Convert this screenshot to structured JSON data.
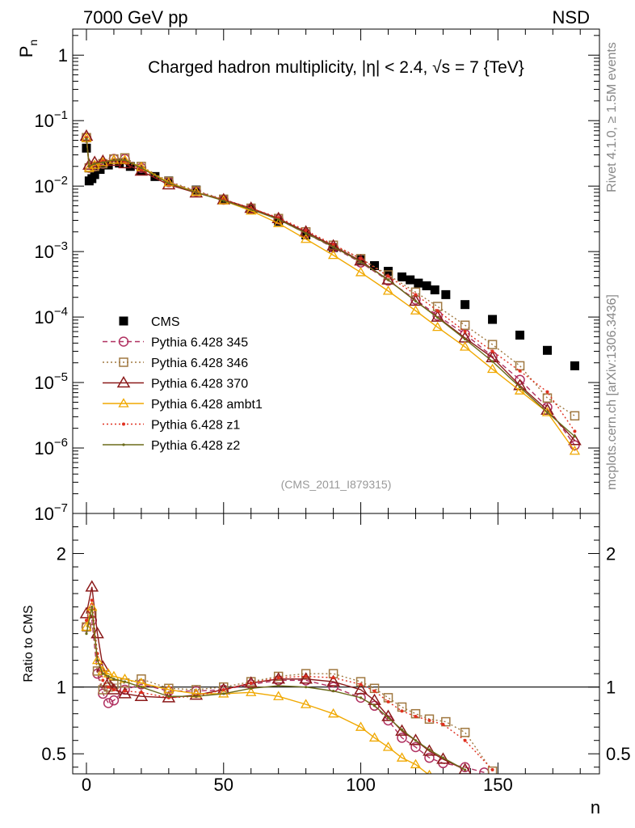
{
  "header": {
    "energy_label": "7000 GeV pp",
    "process_label": "NSD",
    "plot_title": "Charged hadron multiplicity, |η| < 2.4, √s = 7 {TeV}",
    "analysis_id": "(CMS_2011_I879315)",
    "rivet_label": "Rivet 4.1.0, ≥ 1.5M events",
    "mcplots_label": "mcplots.cern.ch [arXiv:1306.3436]"
  },
  "chart_data": [
    {
      "type": "scatter",
      "panel": "main",
      "title": "Charged hadron multiplicity, |η| < 2.4, √s = 7 {TeV}",
      "xlabel": "n",
      "ylabel": "P_n",
      "yscale": "log",
      "xlim": [
        -5,
        187
      ],
      "ylim": [
        1e-07,
        2.5
      ],
      "y_tick_labels": [
        "10^-7",
        "10^-6",
        "10^-5",
        "10^-4",
        "10^-3",
        "10^-2",
        "10^-1",
        "1"
      ],
      "legend_position": "lower-left",
      "series": [
        {
          "name": "CMS",
          "color": "#000000",
          "marker": "filled-square",
          "x": [
            0,
            1,
            2,
            3,
            5,
            8,
            12,
            16,
            20,
            25,
            30,
            40,
            50,
            60,
            70,
            80,
            90,
            100,
            105,
            110,
            115,
            118,
            121,
            124,
            127,
            131,
            138,
            148,
            158,
            168,
            178
          ],
          "values": [
            0.038,
            0.012,
            0.013,
            0.015,
            0.018,
            0.021,
            0.0225,
            0.02,
            0.017,
            0.014,
            0.012,
            0.0087,
            0.0063,
            0.0044,
            0.0029,
            0.0018,
            0.00115,
            0.00075,
            0.00061,
            0.0005,
            0.00041,
            0.00037,
            0.00033,
            0.0003,
            0.00026,
            0.00022,
            0.000155,
            9.2e-05,
            5.3e-05,
            3.1e-05,
            1.8e-05
          ]
        },
        {
          "name": "Pythia 6.428 345",
          "color": "#b03060",
          "marker": "open-circle",
          "line": "dashed",
          "x": [
            0,
            1,
            3,
            6,
            10,
            14,
            20,
            30,
            40,
            50,
            60,
            70,
            80,
            90,
            100,
            110,
            120,
            128,
            138,
            148,
            158,
            168,
            178
          ],
          "values": [
            0.055,
            0.019,
            0.02,
            0.022,
            0.026,
            0.026,
            0.019,
            0.0115,
            0.0083,
            0.0062,
            0.0045,
            0.0031,
            0.0019,
            0.00115,
            0.00068,
            0.00036,
            0.000185,
            0.000105,
            5.5e-05,
            2.5e-05,
            1.1e-05,
            4.2e-06,
            1.1e-06
          ]
        },
        {
          "name": "Pythia 6.428 346",
          "color": "#a07840",
          "marker": "open-square",
          "line": "dotted",
          "x": [
            0,
            1,
            3,
            6,
            10,
            14,
            20,
            30,
            40,
            50,
            60,
            70,
            80,
            90,
            100,
            110,
            120,
            128,
            138,
            148,
            158,
            168,
            178
          ],
          "values": [
            0.055,
            0.019,
            0.02,
            0.022,
            0.026,
            0.027,
            0.02,
            0.0118,
            0.0085,
            0.0063,
            0.0046,
            0.0032,
            0.002,
            0.00125,
            0.00078,
            0.00044,
            0.00024,
            0.000145,
            7.5e-05,
            3.8e-05,
            1.8e-05,
            5.8e-06,
            3.1e-06
          ]
        },
        {
          "name": "Pythia 6.428 370",
          "color": "#8b1a1a",
          "marker": "open-triangle",
          "line": "solid",
          "x": [
            0,
            1,
            3,
            6,
            10,
            14,
            20,
            30,
            40,
            50,
            60,
            70,
            80,
            90,
            100,
            110,
            120,
            128,
            138,
            148,
            158,
            168,
            178
          ],
          "values": [
            0.058,
            0.021,
            0.023,
            0.024,
            0.024,
            0.022,
            0.017,
            0.0105,
            0.0079,
            0.0062,
            0.0046,
            0.0032,
            0.002,
            0.00122,
            0.00072,
            0.00037,
            0.000175,
            0.0001,
            4.8e-05,
            2.4e-05,
            9e-06,
            3.8e-06,
            1.3e-06
          ]
        },
        {
          "name": "Pythia 6.428 ambt1",
          "color": "#f0a800",
          "marker": "open-triangle-small",
          "line": "solid",
          "x": [
            0,
            1,
            3,
            6,
            10,
            14,
            20,
            30,
            40,
            50,
            60,
            70,
            80,
            90,
            100,
            110,
            120,
            128,
            138,
            148,
            158,
            168,
            178
          ],
          "values": [
            0.054,
            0.019,
            0.021,
            0.023,
            0.025,
            0.025,
            0.0195,
            0.0113,
            0.0081,
            0.006,
            0.0042,
            0.0027,
            0.00155,
            0.00088,
            0.00048,
            0.00025,
            0.000125,
            7e-05,
            3.5e-05,
            1.6e-05,
            7.5e-06,
            3.5e-06,
            9e-07
          ]
        },
        {
          "name": "Pythia 6.428 z1",
          "color": "#e03020",
          "marker": "dot",
          "line": "dotted",
          "x": [
            0,
            1,
            3,
            6,
            10,
            14,
            20,
            30,
            40,
            50,
            60,
            70,
            80,
            90,
            100,
            110,
            120,
            128,
            138,
            148,
            158,
            168,
            178
          ],
          "values": [
            0.055,
            0.02,
            0.022,
            0.024,
            0.025,
            0.024,
            0.018,
            0.0108,
            0.008,
            0.0062,
            0.0046,
            0.0033,
            0.0021,
            0.00128,
            0.00078,
            0.00042,
            0.00022,
            0.000125,
            6e-05,
            3e-05,
            1.5e-05,
            7.2e-06,
            1.8e-06
          ]
        },
        {
          "name": "Pythia 6.428 z2",
          "color": "#6b6b1a",
          "marker": "small-dot",
          "line": "solid",
          "x": [
            0,
            1,
            3,
            6,
            10,
            14,
            20,
            30,
            40,
            50,
            60,
            70,
            80,
            90,
            100,
            110,
            120,
            128,
            138,
            148,
            158,
            168,
            178
          ],
          "values": [
            0.053,
            0.02,
            0.022,
            0.023,
            0.025,
            0.025,
            0.019,
            0.011,
            0.008,
            0.006,
            0.0044,
            0.0031,
            0.0019,
            0.00118,
            0.0007,
            0.00037,
            0.000175,
            9.8e-05,
            4.6e-05,
            2.1e-05,
            8.5e-06,
            3.5e-06,
            1.5e-06
          ]
        }
      ]
    },
    {
      "type": "line",
      "panel": "ratio",
      "ylabel": "Ratio to CMS",
      "xlabel": "n",
      "xlim": [
        -5,
        187
      ],
      "ylim": [
        0.35,
        2.3
      ],
      "y_ticks": [
        0.5,
        1,
        2
      ],
      "y_tick_labels": [
        "0.5",
        "1",
        "2"
      ],
      "x_ticks": [
        0,
        50,
        100,
        150
      ],
      "x_tick_labels": [
        "0",
        "50",
        "100",
        "150"
      ],
      "reference_line": 1,
      "series": [
        {
          "name": "Pythia 6.428 345",
          "color": "#b03060",
          "x": [
            0,
            2,
            4,
            6,
            8,
            10,
            14,
            20,
            30,
            40,
            50,
            60,
            70,
            80,
            90,
            100,
            105,
            110,
            115,
            120,
            125,
            130,
            138,
            145
          ],
          "values": [
            1.45,
            1.5,
            1.1,
            0.95,
            0.88,
            0.9,
            0.98,
            1.02,
            0.97,
            0.97,
            0.98,
            1.02,
            1.05,
            1.05,
            1.0,
            0.92,
            0.86,
            0.75,
            0.62,
            0.55,
            0.47,
            0.43,
            0.4,
            0.36
          ]
        },
        {
          "name": "Pythia 6.428 346",
          "color": "#a07840",
          "x": [
            0,
            2,
            4,
            6,
            8,
            10,
            14,
            20,
            30,
            40,
            50,
            60,
            70,
            80,
            90,
            100,
            105,
            110,
            115,
            120,
            125,
            131,
            138,
            148
          ],
          "values": [
            1.45,
            1.55,
            1.12,
            0.98,
            1.0,
            1.02,
            1.03,
            1.06,
            0.99,
            0.98,
            1.0,
            1.04,
            1.08,
            1.1,
            1.1,
            1.04,
            0.99,
            0.92,
            0.85,
            0.8,
            0.76,
            0.74,
            0.66,
            0.37
          ]
        },
        {
          "name": "Pythia 6.428 370",
          "color": "#8b1a1a",
          "x": [
            0,
            2,
            4,
            6,
            8,
            10,
            14,
            20,
            30,
            40,
            50,
            60,
            70,
            80,
            90,
            100,
            105,
            110,
            115,
            120,
            125,
            130,
            138
          ],
          "values": [
            1.55,
            1.75,
            1.4,
            1.15,
            1.03,
            0.98,
            0.95,
            0.93,
            0.92,
            0.94,
            0.98,
            1.03,
            1.06,
            1.06,
            1.04,
            0.98,
            0.9,
            0.78,
            0.67,
            0.6,
            0.52,
            0.46,
            0.38
          ]
        },
        {
          "name": "Pythia 6.428 ambt1",
          "color": "#f0a800",
          "x": [
            0,
            2,
            4,
            6,
            8,
            10,
            14,
            20,
            30,
            40,
            50,
            60,
            70,
            80,
            90,
            100,
            105,
            110,
            115,
            120,
            125
          ],
          "values": [
            1.45,
            1.6,
            1.2,
            1.12,
            1.1,
            1.08,
            1.06,
            1.03,
            0.98,
            0.95,
            0.95,
            0.96,
            0.93,
            0.87,
            0.8,
            0.7,
            0.62,
            0.55,
            0.47,
            0.42,
            0.34
          ]
        },
        {
          "name": "Pythia 6.428 z1",
          "color": "#e03020",
          "x": [
            0,
            2,
            4,
            6,
            8,
            10,
            14,
            20,
            30,
            40,
            50,
            60,
            70,
            80,
            90,
            100,
            105,
            110,
            115,
            120,
            125,
            130,
            138,
            148
          ],
          "values": [
            1.5,
            1.65,
            1.25,
            1.05,
            1.0,
            0.98,
            0.97,
            0.96,
            0.92,
            0.93,
            0.98,
            1.03,
            1.07,
            1.08,
            1.07,
            1.02,
            0.97,
            0.89,
            0.82,
            0.78,
            0.75,
            0.72,
            0.6,
            0.38
          ]
        },
        {
          "name": "Pythia 6.428 z2",
          "color": "#6b6b1a",
          "x": [
            0,
            2,
            4,
            6,
            8,
            10,
            14,
            20,
            30,
            40,
            50,
            60,
            70,
            80,
            90,
            100,
            105,
            110,
            115,
            120,
            125,
            130,
            138
          ],
          "values": [
            1.4,
            1.6,
            1.2,
            1.1,
            1.08,
            1.06,
            1.04,
            1.0,
            0.93,
            0.93,
            0.95,
            0.99,
            1.01,
            1.0,
            0.97,
            0.92,
            0.86,
            0.77,
            0.68,
            0.6,
            0.53,
            0.47,
            0.38
          ]
        }
      ]
    }
  ]
}
